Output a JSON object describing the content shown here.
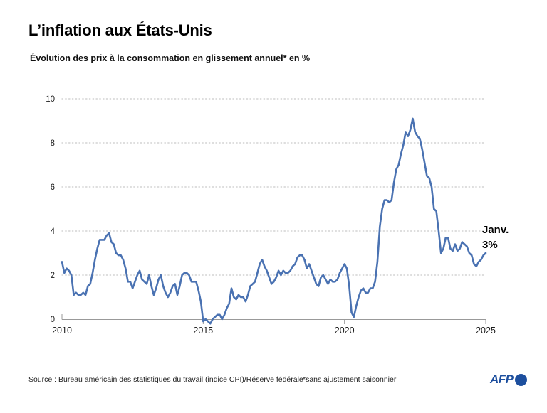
{
  "page": {
    "title": "L’inflation aux États-Unis",
    "subtitle": "Évolution des prix à la consommation en glissement annuel* en %"
  },
  "annotation": {
    "line1": "Janv.",
    "line2": "3%"
  },
  "footer": {
    "source": "Source : Bureau américain des statistiques du travail (indice CPI)/Réserve fédérale",
    "note": "*sans ajustement saisonnier",
    "logo": "AFP"
  },
  "colors": {
    "line": "#4a72b2",
    "grid": "#c9c9c9",
    "axis": "#999999",
    "logo_blue": "#1d4f9e",
    "text": "#1a1a1a"
  },
  "chart_data": {
    "type": "line",
    "title": "L’inflation aux États-Unis",
    "subtitle": "Évolution des prix à la consommation en glissement annuel* en %",
    "xlabel": "",
    "ylabel": "en %",
    "xlim": [
      2010,
      2025
    ],
    "ylim": [
      0,
      10
    ],
    "xticks": [
      2010,
      2015,
      2020,
      2025
    ],
    "yticks": [
      0,
      2,
      4,
      6,
      8,
      10
    ],
    "grid": "horizontal-dotted",
    "legend": "none",
    "annotation": "Janv. 3%",
    "x_start_year": 2010,
    "x_frequency": "monthly",
    "x_end_label": "Janv. 2025",
    "series": [
      {
        "name": "Inflation CPI, glissement annuel (%)",
        "values": [
          2.6,
          2.1,
          2.3,
          2.2,
          2.0,
          1.1,
          1.2,
          1.1,
          1.1,
          1.2,
          1.1,
          1.5,
          1.6,
          2.1,
          2.7,
          3.2,
          3.6,
          3.6,
          3.6,
          3.8,
          3.9,
          3.5,
          3.4,
          3.0,
          2.9,
          2.9,
          2.7,
          2.3,
          1.7,
          1.7,
          1.4,
          1.7,
          2.0,
          2.2,
          1.8,
          1.7,
          1.6,
          2.0,
          1.5,
          1.1,
          1.4,
          1.8,
          2.0,
          1.5,
          1.2,
          1.0,
          1.2,
          1.5,
          1.6,
          1.1,
          1.5,
          2.0,
          2.1,
          2.1,
          2.0,
          1.7,
          1.7,
          1.7,
          1.3,
          0.8,
          -0.1,
          0.0,
          -0.1,
          -0.2,
          0.0,
          0.1,
          0.2,
          0.2,
          0.0,
          0.2,
          0.5,
          0.7,
          1.4,
          1.0,
          0.9,
          1.1,
          1.0,
          1.0,
          0.8,
          1.1,
          1.5,
          1.6,
          1.7,
          2.1,
          2.5,
          2.7,
          2.4,
          2.2,
          1.9,
          1.6,
          1.7,
          1.9,
          2.2,
          2.0,
          2.2,
          2.1,
          2.1,
          2.2,
          2.4,
          2.5,
          2.8,
          2.9,
          2.9,
          2.7,
          2.3,
          2.5,
          2.2,
          1.9,
          1.6,
          1.5,
          1.9,
          2.0,
          1.8,
          1.6,
          1.8,
          1.7,
          1.7,
          1.8,
          2.1,
          2.3,
          2.5,
          2.3,
          1.5,
          0.3,
          0.1,
          0.6,
          1.0,
          1.3,
          1.4,
          1.2,
          1.2,
          1.4,
          1.4,
          1.7,
          2.6,
          4.2,
          5.0,
          5.4,
          5.4,
          5.3,
          5.4,
          6.2,
          6.8,
          7.0,
          7.5,
          7.9,
          8.5,
          8.3,
          8.6,
          9.1,
          8.5,
          8.3,
          8.2,
          7.7,
          7.1,
          6.5,
          6.4,
          6.0,
          5.0,
          4.9,
          4.0,
          3.0,
          3.2,
          3.7,
          3.7,
          3.2,
          3.1,
          3.4,
          3.1,
          3.2,
          3.5,
          3.4,
          3.3,
          3.0,
          2.9,
          2.5,
          2.4,
          2.6,
          2.7,
          2.9,
          3.0
        ]
      }
    ]
  }
}
